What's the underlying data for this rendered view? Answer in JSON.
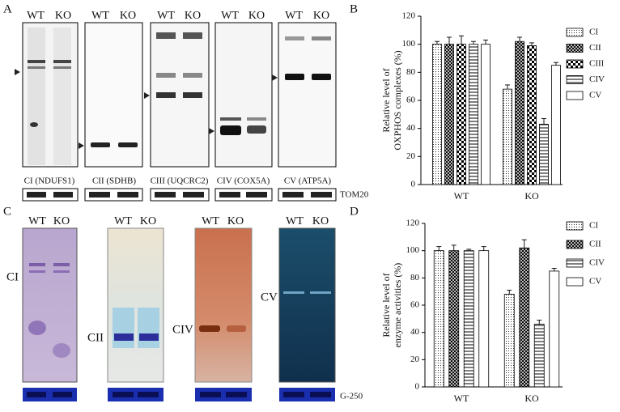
{
  "panel_labels": [
    "A",
    "B",
    "C",
    "D"
  ],
  "blots": {
    "lanes": [
      "WT",
      "KO"
    ],
    "antibodies": [
      "CI (NDUFS1)",
      "CII (SDHB)",
      "CIII (UQCRC2)",
      "CIV (COX5A)",
      "CV (ATP5A)"
    ],
    "loading": "TOM20"
  },
  "gels": {
    "complexes": [
      "CI",
      "CII",
      "CIV",
      "CV"
    ],
    "loading": "G-250"
  },
  "chart_data": [
    {
      "type": "bar",
      "ylabel": [
        "Relative level of",
        "OXPHOS complexes (%)"
      ],
      "categories": [
        "WT",
        "KO"
      ],
      "ylim": [
        0,
        120
      ],
      "yticks": [
        0,
        20,
        40,
        60,
        80,
        100,
        120
      ],
      "series": [
        {
          "name": "CI",
          "color": "#000000",
          "pattern": "dots",
          "values": [
            100,
            68
          ],
          "errors": [
            2,
            3
          ]
        },
        {
          "name": "CII",
          "color": "#000000",
          "pattern": "crosshatch",
          "values": [
            100,
            102
          ],
          "errors": [
            5,
            3
          ]
        },
        {
          "name": "CIII",
          "color": "#000000",
          "pattern": "checker",
          "values": [
            100,
            99
          ],
          "errors": [
            6,
            2
          ]
        },
        {
          "name": "CIV",
          "color": "#000000",
          "pattern": "hlines",
          "values": [
            100,
            43
          ],
          "errors": [
            2,
            4
          ]
        },
        {
          "name": "CV",
          "color": "#000000",
          "pattern": "none",
          "values": [
            100,
            85
          ],
          "errors": [
            3,
            2
          ]
        }
      ]
    },
    {
      "type": "bar",
      "ylabel": [
        "Relative level of",
        "enzyme activities (%)"
      ],
      "categories": [
        "WT",
        "KO"
      ],
      "ylim": [
        0,
        120
      ],
      "yticks": [
        0,
        20,
        40,
        60,
        80,
        100,
        120
      ],
      "series": [
        {
          "name": "CI",
          "color": "#000000",
          "pattern": "dots",
          "values": [
            100,
            68
          ],
          "errors": [
            3,
            3
          ]
        },
        {
          "name": "CII",
          "color": "#000000",
          "pattern": "crosshatch",
          "values": [
            100,
            102
          ],
          "errors": [
            4,
            6
          ]
        },
        {
          "name": "CIV",
          "color": "#000000",
          "pattern": "hlines",
          "values": [
            100,
            46
          ],
          "errors": [
            1,
            3
          ]
        },
        {
          "name": "CV",
          "color": "#000000",
          "pattern": "none",
          "values": [
            100,
            85
          ],
          "errors": [
            3,
            2
          ]
        }
      ]
    }
  ]
}
